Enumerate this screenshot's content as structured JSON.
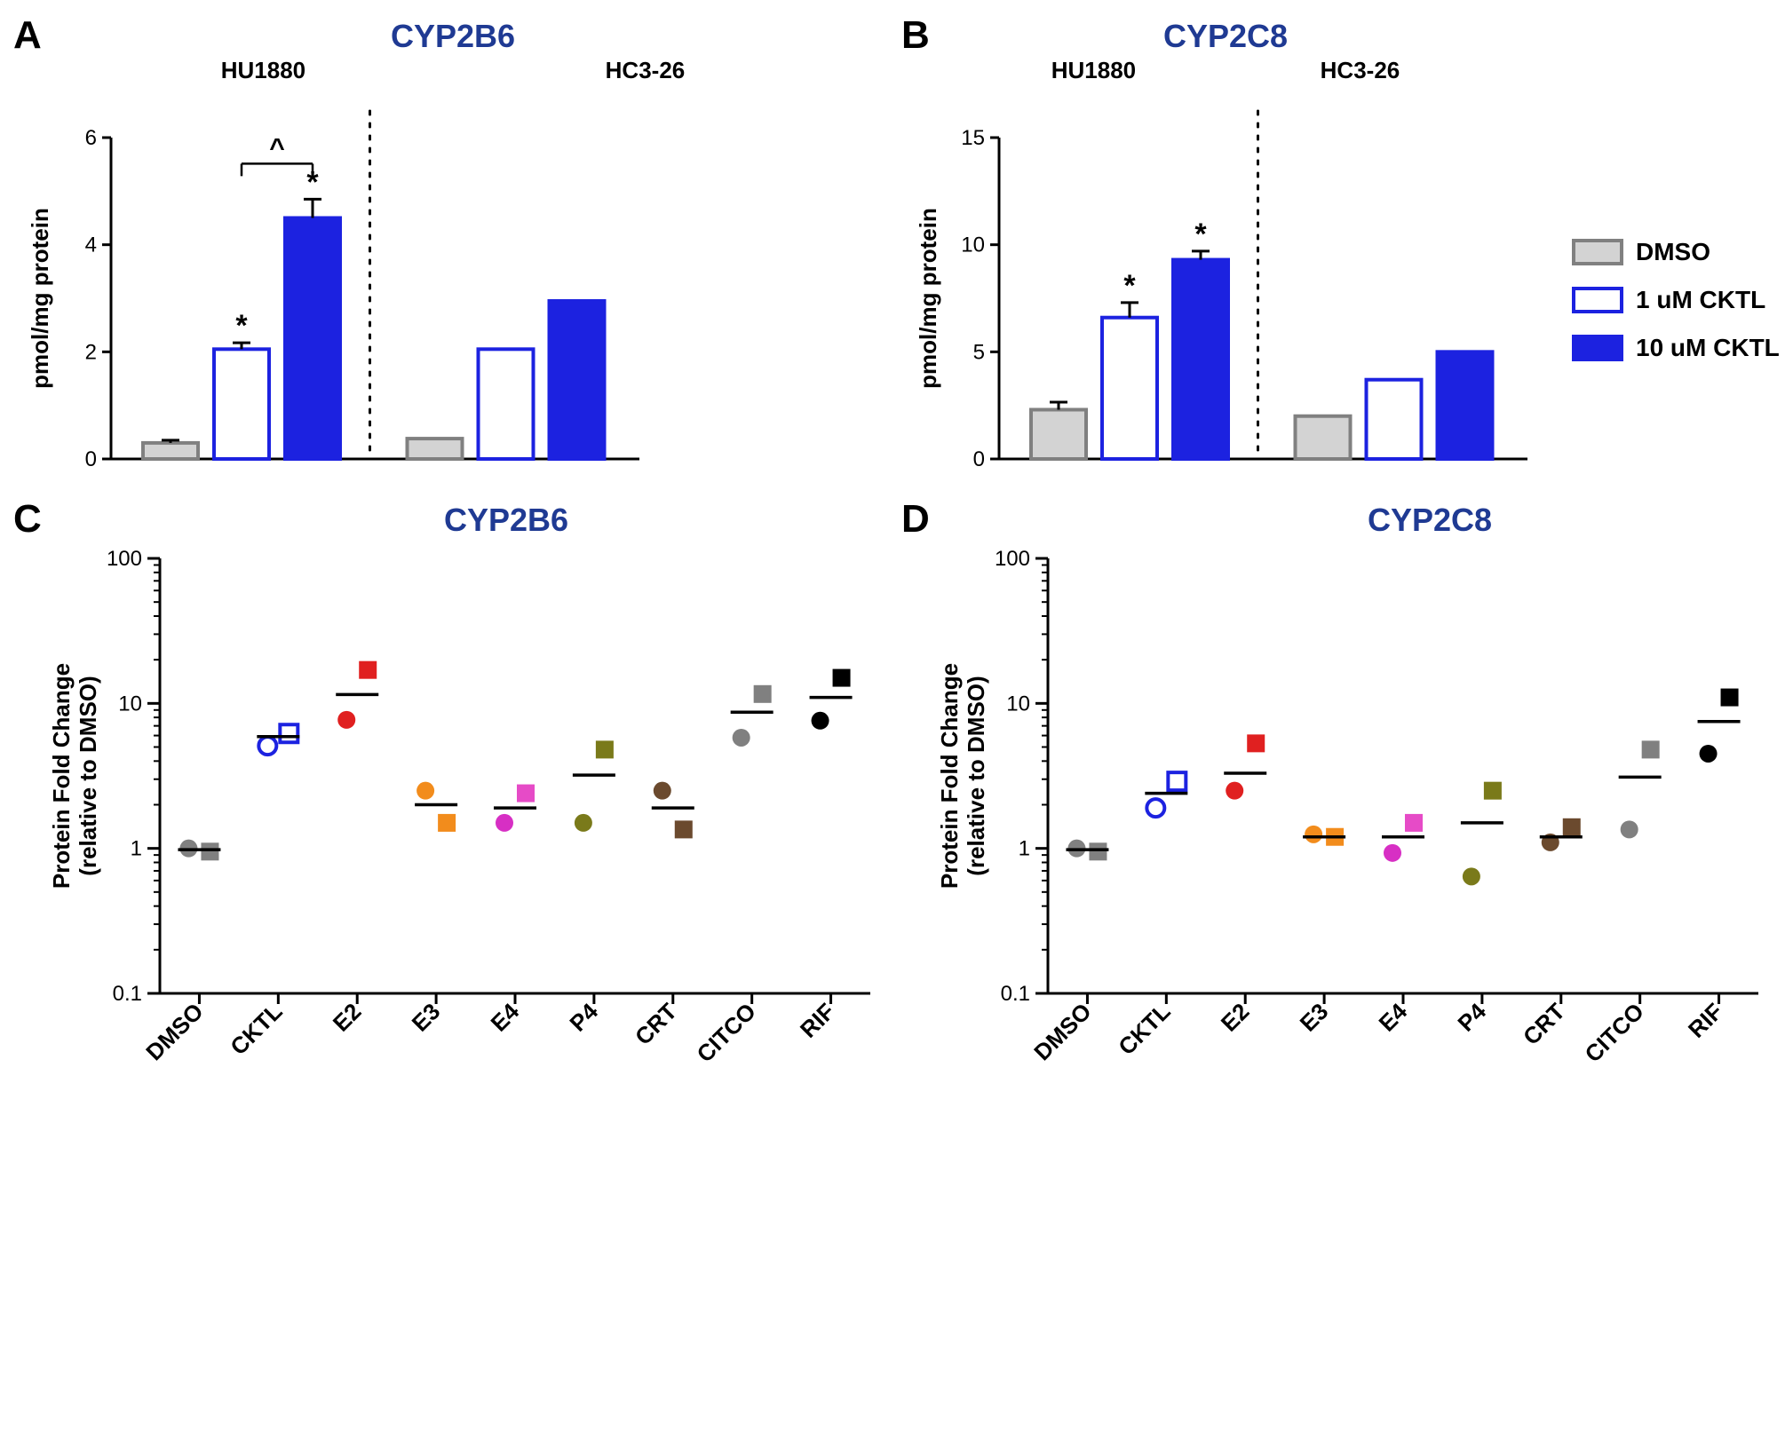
{
  "panels": {
    "A": {
      "label": "A",
      "title": "CYP2B6",
      "sub_left": "HU1880",
      "sub_right": "HC3-26"
    },
    "B": {
      "label": "B",
      "title": "CYP2C8",
      "sub_left": "HU1880",
      "sub_right": "HC3-26"
    },
    "C": {
      "label": "C",
      "title": "CYP2B6"
    },
    "D": {
      "label": "D",
      "title": "CYP2C8"
    }
  },
  "legend": {
    "dmso": {
      "label": "DMSO",
      "fill": "#d3d3d3",
      "stroke": "#808080"
    },
    "cktl1": {
      "label": "1 uM CKTL",
      "fill": "#ffffff",
      "stroke": "#1c22e0"
    },
    "cktl10": {
      "label": "10 uM CKTL",
      "fill": "#1c22e0",
      "stroke": "#1c22e0"
    }
  },
  "barchart_common": {
    "ylabel": "pmol/mg protein"
  },
  "barA": {
    "ymax": 6,
    "ytick_step": 2,
    "groups": [
      {
        "name": "HU1880",
        "bars": [
          {
            "series": "dmso",
            "value": 0.3,
            "err": 0.05,
            "sig": ""
          },
          {
            "series": "cktl1",
            "value": 2.05,
            "err": 0.12,
            "sig": "*"
          },
          {
            "series": "cktl10",
            "value": 4.5,
            "err": 0.35,
            "sig": "*"
          }
        ],
        "bracket": {
          "from": 1,
          "to": 2,
          "label": "^"
        }
      },
      {
        "name": "HC3-26",
        "bars": [
          {
            "series": "dmso",
            "value": 0.38,
            "err": 0,
            "sig": ""
          },
          {
            "series": "cktl1",
            "value": 2.05,
            "err": 0,
            "sig": ""
          },
          {
            "series": "cktl10",
            "value": 2.95,
            "err": 0,
            "sig": ""
          }
        ]
      }
    ]
  },
  "barB": {
    "ymax": 15,
    "ytick_step": 5,
    "groups": [
      {
        "name": "HU1880",
        "bars": [
          {
            "series": "dmso",
            "value": 2.3,
            "err": 0.35,
            "sig": ""
          },
          {
            "series": "cktl1",
            "value": 6.6,
            "err": 0.7,
            "sig": "*"
          },
          {
            "series": "cktl10",
            "value": 9.3,
            "err": 0.4,
            "sig": "*"
          }
        ]
      },
      {
        "name": "HC3-26",
        "bars": [
          {
            "series": "dmso",
            "value": 2.0,
            "err": 0,
            "sig": ""
          },
          {
            "series": "cktl1",
            "value": 3.7,
            "err": 0,
            "sig": ""
          },
          {
            "series": "cktl10",
            "value": 5.0,
            "err": 0,
            "sig": ""
          }
        ]
      }
    ]
  },
  "scatter_common": {
    "ylabel_line1": "Protein Fold Change",
    "ylabel_line2": "(relative to DMSO)",
    "ymin": 0.1,
    "ymax": 100,
    "yticks": [
      0.1,
      1,
      10,
      100
    ],
    "categories": [
      "DMSO",
      "CKTL",
      "E2",
      "E3",
      "E4",
      "P4",
      "CRT",
      "CITCO",
      "RIF"
    ]
  },
  "scatter_colors": {
    "DMSO": {
      "circle": "#808080",
      "square": "#808080",
      "circle_filled": true,
      "open_square": false
    },
    "CKTL": {
      "circle": "#1c22e0",
      "square": "#1c22e0",
      "circle_filled": false,
      "open_square": true
    },
    "E2": {
      "circle": "#e02020",
      "square": "#e02020"
    },
    "E3": {
      "circle": "#f28c1c",
      "square": "#f28c1c"
    },
    "E4": {
      "circle": "#d72fc4",
      "square": "#e64bc7"
    },
    "P4": {
      "circle": "#7a7a1a",
      "square": "#7a7a1a"
    },
    "CRT": {
      "circle": "#6b4a2e",
      "square": "#6b4a2e"
    },
    "CITCO": {
      "circle": "#808080",
      "square": "#808080"
    },
    "RIF": {
      "circle": "#000000",
      "square": "#000000"
    }
  },
  "scatterC": {
    "points": {
      "DMSO": [
        1.0,
        0.95
      ],
      "CKTL": [
        5.1,
        6.2
      ],
      "E2": [
        7.7,
        17.0
      ],
      "E3": [
        2.5,
        1.5
      ],
      "E4": [
        1.5,
        2.4
      ],
      "P4": [
        1.5,
        4.8
      ],
      "CRT": [
        2.5,
        1.35
      ],
      "CITCO": [
        5.8,
        11.6
      ],
      "RIF": [
        7.6,
        15.0
      ]
    },
    "means": {
      "DMSO": 0.98,
      "CKTL": 5.9,
      "E2": 11.5,
      "E3": 2.0,
      "E4": 1.9,
      "P4": 3.2,
      "CRT": 1.9,
      "CITCO": 8.7,
      "RIF": 11.0
    }
  },
  "scatterD": {
    "points": {
      "DMSO": [
        1.0,
        0.95
      ],
      "CKTL": [
        1.9,
        2.9
      ],
      "E2": [
        2.5,
        5.3
      ],
      "E3": [
        1.25,
        1.2
      ],
      "E4": [
        0.93,
        1.5
      ],
      "P4": [
        0.64,
        2.5
      ],
      "CRT": [
        1.1,
        1.4
      ],
      "CITCO": [
        1.35,
        4.8
      ],
      "RIF": [
        4.5,
        11.0
      ]
    },
    "means": {
      "DMSO": 0.98,
      "CKTL": 2.4,
      "E2": 3.3,
      "E3": 1.2,
      "E4": 1.2,
      "P4": 1.5,
      "CRT": 1.2,
      "CITCO": 3.1,
      "RIF": 7.5
    }
  }
}
